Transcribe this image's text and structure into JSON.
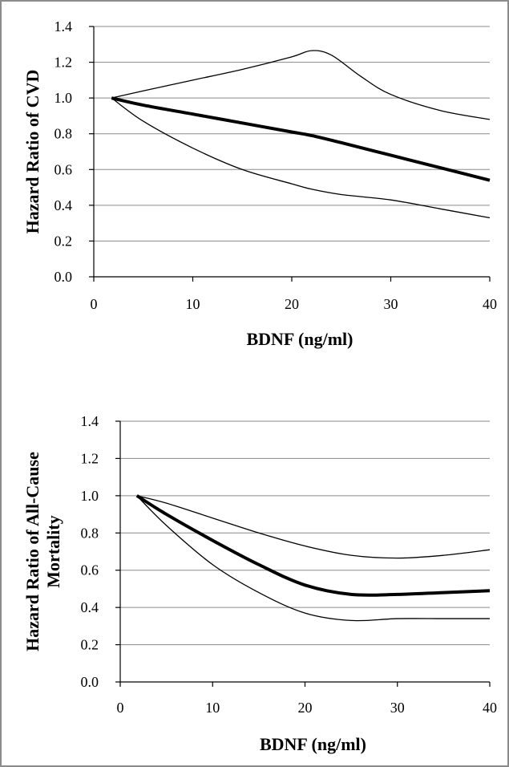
{
  "chart_data": [
    {
      "type": "line",
      "xlabel": "BDNF (ng/ml)",
      "ylabel": "Hazard Ratio of CVD",
      "xlim": [
        0,
        40
      ],
      "ylim": [
        0,
        1.4
      ],
      "xticks": [
        0,
        10,
        20,
        30,
        40
      ],
      "yticks": [
        0.0,
        0.2,
        0.4,
        0.6,
        0.8,
        1.0,
        1.2,
        1.4
      ],
      "xtick_labels": [
        "0",
        "10",
        "20",
        "30",
        "40"
      ],
      "ytick_labels": [
        "0.0",
        "0.2",
        "0.4",
        "0.6",
        "0.8",
        "1.0",
        "1.2",
        "1.4"
      ],
      "grid": true,
      "series": [
        {
          "role": "estimate",
          "x": [
            1.8,
            5,
            10,
            15,
            20,
            22,
            25,
            30,
            35,
            40
          ],
          "y": [
            1.0,
            0.96,
            0.91,
            0.86,
            0.81,
            0.79,
            0.75,
            0.68,
            0.61,
            0.54
          ]
        },
        {
          "role": "upper",
          "x": [
            1.8,
            5,
            10,
            15,
            20,
            22,
            24,
            27,
            30,
            35,
            40
          ],
          "y": [
            1.0,
            1.04,
            1.1,
            1.16,
            1.23,
            1.265,
            1.24,
            1.12,
            1.02,
            0.93,
            0.88
          ]
        },
        {
          "role": "lower",
          "x": [
            1.8,
            5,
            10,
            15,
            20,
            22,
            25,
            30,
            35,
            40
          ],
          "y": [
            1.0,
            0.87,
            0.72,
            0.6,
            0.52,
            0.49,
            0.46,
            0.43,
            0.38,
            0.33
          ]
        }
      ]
    },
    {
      "type": "line",
      "xlabel": "BDNF (ng/ml)",
      "ylabel": "Hazard Ratio of All-Cause Mortality",
      "xlim": [
        0,
        40
      ],
      "ylim": [
        0,
        1.4
      ],
      "xticks": [
        0,
        10,
        20,
        30,
        40
      ],
      "yticks": [
        0.0,
        0.2,
        0.4,
        0.6,
        0.8,
        1.0,
        1.2,
        1.4
      ],
      "xtick_labels": [
        "0",
        "10",
        "20",
        "30",
        "40"
      ],
      "ytick_labels": [
        "0.0",
        "0.2",
        "0.4",
        "0.6",
        "0.8",
        "1.0",
        "1.2",
        "1.4"
      ],
      "grid": true,
      "series": [
        {
          "role": "estimate",
          "x": [
            1.8,
            5,
            10,
            15,
            20,
            25,
            30,
            35,
            40
          ],
          "y": [
            1.0,
            0.9,
            0.76,
            0.63,
            0.52,
            0.47,
            0.47,
            0.48,
            0.49
          ]
        },
        {
          "role": "upper",
          "x": [
            1.8,
            5,
            10,
            15,
            20,
            25,
            30,
            35,
            40
          ],
          "y": [
            1.0,
            0.96,
            0.88,
            0.8,
            0.73,
            0.68,
            0.665,
            0.68,
            0.71
          ]
        },
        {
          "role": "lower",
          "x": [
            1.8,
            5,
            10,
            15,
            20,
            25,
            30,
            35,
            40
          ],
          "y": [
            1.0,
            0.84,
            0.63,
            0.48,
            0.37,
            0.33,
            0.34,
            0.34,
            0.34
          ]
        }
      ]
    }
  ]
}
